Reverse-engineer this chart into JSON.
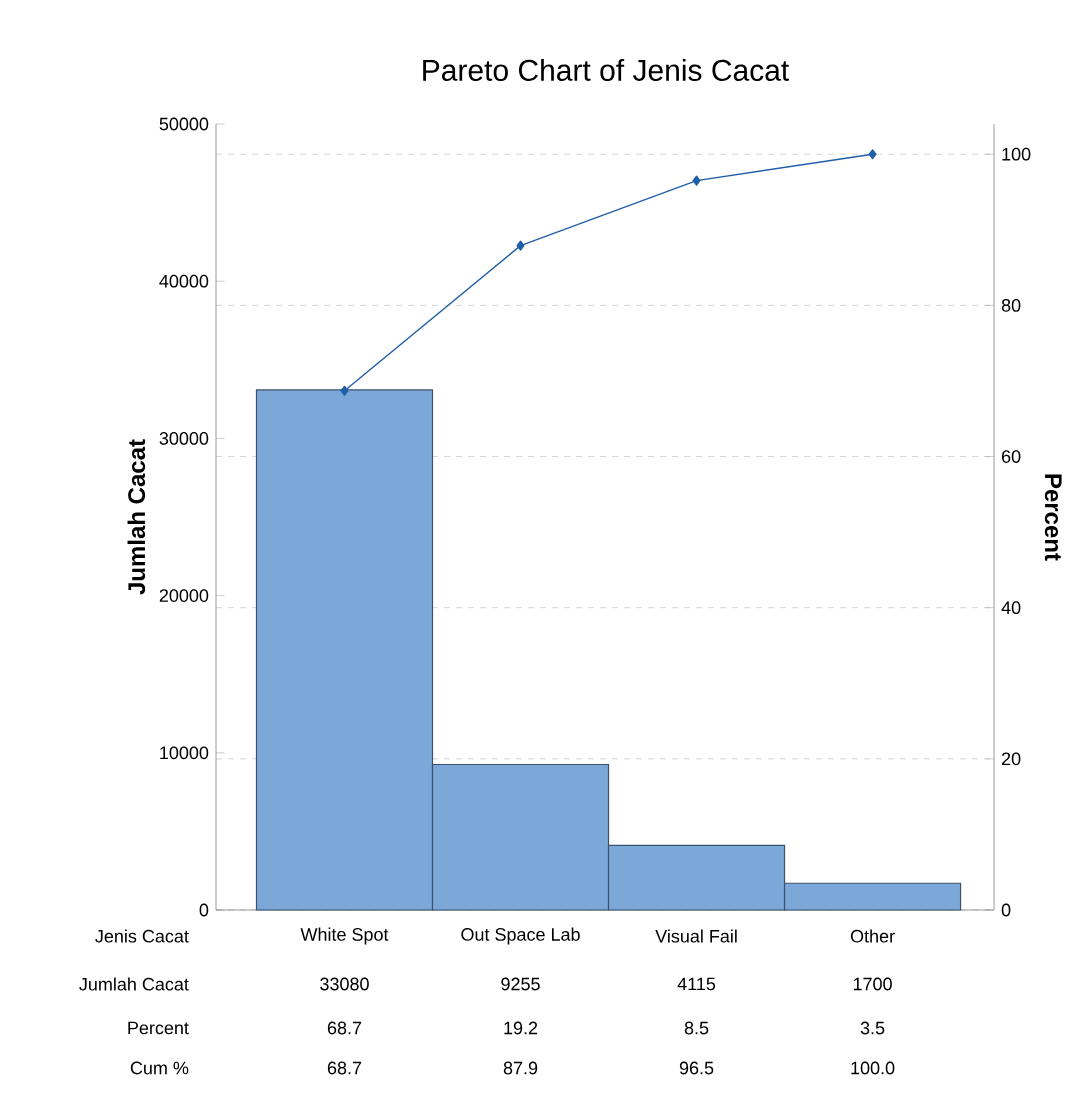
{
  "chart_data": {
    "type": "bar",
    "title": "Pareto Chart of Jenis Cacat",
    "xlabel": "Jenis Cacat",
    "ylabel": "Jumlah Cacat",
    "y2label": "Percent",
    "categories": [
      "White Spot",
      "Out Space Lab",
      "Visual Fail",
      "Other"
    ],
    "series": [
      {
        "color": "#7ba7d9",
        "values": [
          33080,
          9255,
          4115,
          1700
        ],
        "value_labels": [
          "33080",
          "9255",
          "4115",
          "1700"
        ]
      },
      {
        "type": "line",
        "axis": "y2",
        "color": "#1f5fa8",
        "marker": "diamond",
        "values": [
          68.7,
          87.9,
          96.5,
          100.0
        ],
        "value_labels": [
          "68.7",
          "87.9",
          "96.5",
          "100.0"
        ]
      }
    ],
    "annotations": [
      "Jumlah Cacat",
      "Percent",
      "Cum %",
      "68.7",
      "19.2",
      "8.5",
      "3.5"
    ],
    "ylim": [
      0,
      50000
    ],
    "yticks": [
      0,
      10000,
      20000,
      30000,
      40000,
      50000
    ],
    "y2lim": [
      0,
      104
    ],
    "y2ticks": [
      0,
      20,
      40,
      60,
      80,
      100
    ],
    "grid": "y"
  }
}
